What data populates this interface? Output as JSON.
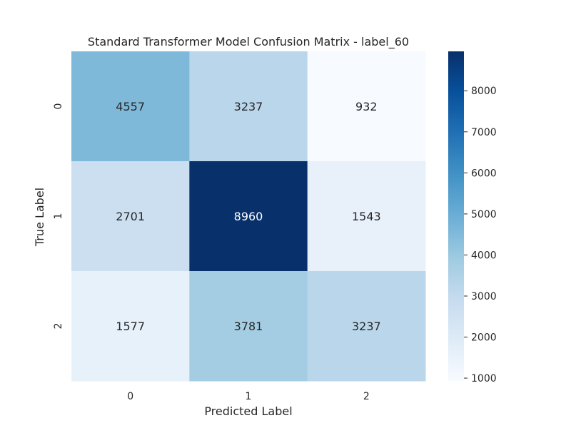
{
  "chart_data": {
    "type": "heatmap",
    "title": "Standard Transformer Model Confusion Matrix - label_60",
    "xlabel": "Predicted Label",
    "ylabel": "True Label",
    "x_categories": [
      "0",
      "1",
      "2"
    ],
    "y_categories": [
      "0",
      "1",
      "2"
    ],
    "values": [
      [
        4557,
        3237,
        932
      ],
      [
        2701,
        8960,
        1543
      ],
      [
        1577,
        3781,
        3237
      ]
    ],
    "colormap": "Blues",
    "colorbar": {
      "min": 932,
      "max": 8960,
      "ticks": [
        1000,
        2000,
        3000,
        4000,
        5000,
        6000,
        7000,
        8000
      ]
    }
  }
}
